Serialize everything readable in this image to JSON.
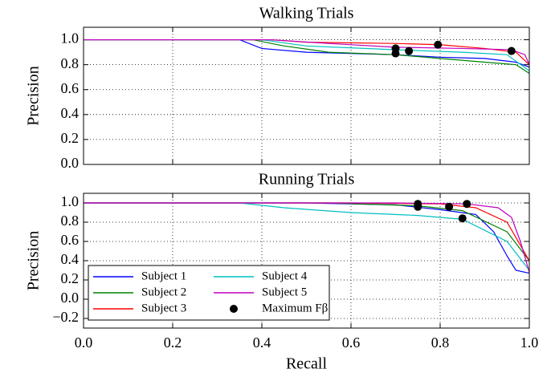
{
  "chart_data": [
    {
      "type": "line",
      "title": "Walking Trials",
      "y_label": "Precision",
      "xlim": [
        0,
        1
      ],
      "ylim": [
        0,
        1.1
      ],
      "grid": true,
      "xtick_labels": false,
      "xticks": [
        0,
        0.2,
        0.4,
        0.6,
        0.8,
        1
      ],
      "yticks": [
        {
          "value": 0,
          "label": "0.0"
        },
        {
          "value": 0.2,
          "label": "0.2"
        },
        {
          "value": 0.4,
          "label": "0.4"
        },
        {
          "value": 0.6,
          "label": "0.6"
        },
        {
          "value": 0.8,
          "label": "0.8"
        },
        {
          "value": 1,
          "label": "1.0"
        }
      ],
      "series": [
        {
          "color": "#0000ff",
          "x": [
            0,
            0.35,
            0.4,
            0.5,
            0.7,
            0.8,
            0.9,
            0.97,
            1
          ],
          "values": [
            1,
            1,
            0.93,
            0.9,
            0.88,
            0.86,
            0.85,
            0.82,
            0.78
          ]
        },
        {
          "color": "#008000",
          "x": [
            0,
            0.38,
            0.45,
            0.55,
            0.7,
            0.8,
            0.9,
            0.97,
            1
          ],
          "values": [
            1,
            1,
            0.95,
            0.9,
            0.88,
            0.85,
            0.82,
            0.8,
            0.73
          ]
        },
        {
          "color": "#ff0000",
          "x": [
            0,
            0.42,
            0.5,
            0.7,
            0.8,
            0.9,
            0.97,
            1
          ],
          "values": [
            1,
            1,
            0.98,
            0.97,
            0.96,
            0.93,
            0.9,
            0.8
          ]
        },
        {
          "color": "#00bfbf",
          "x": [
            0,
            0.4,
            0.5,
            0.7,
            0.85,
            0.95,
            1
          ],
          "values": [
            1,
            1,
            0.95,
            0.92,
            0.9,
            0.88,
            0.75
          ]
        },
        {
          "color": "#bf00bf",
          "x": [
            0,
            0.42,
            0.55,
            0.7,
            0.85,
            0.96,
            0.99,
            1
          ],
          "values": [
            1,
            1,
            0.97,
            0.94,
            0.93,
            0.92,
            0.88,
            0.8
          ]
        },
        {
          "mode": "markers",
          "color": "#000000",
          "x": [
            0.7,
            0.7,
            0.73,
            0.795,
            0.96
          ],
          "values": [
            0.93,
            0.89,
            0.91,
            0.96,
            0.91
          ]
        }
      ]
    },
    {
      "type": "line",
      "title": "Running Trials",
      "x_label": "Recall",
      "y_label": "Precision",
      "xlim": [
        0,
        1
      ],
      "ylim": [
        -0.3,
        1.1
      ],
      "grid": true,
      "xtick_labels": true,
      "legend": "lower left",
      "xticks": [
        {
          "value": 0,
          "label": "0.0"
        },
        {
          "value": 0.2,
          "label": "0.2"
        },
        {
          "value": 0.4,
          "label": "0.4"
        },
        {
          "value": 0.6,
          "label": "0.6"
        },
        {
          "value": 0.8,
          "label": "0.8"
        },
        {
          "value": 1,
          "label": "1.0"
        }
      ],
      "yticks": [
        {
          "value": -0.2,
          "label": "−0.2"
        },
        {
          "value": 0,
          "label": "0.0"
        },
        {
          "value": 0.2,
          "label": "0.2"
        },
        {
          "value": 0.4,
          "label": "0.4"
        },
        {
          "value": 0.6,
          "label": "0.6"
        },
        {
          "value": 0.8,
          "label": "0.8"
        },
        {
          "value": 1,
          "label": "1.0"
        }
      ],
      "series": [
        {
          "name": "Subject 1",
          "color": "#0000ff",
          "x": [
            0,
            0.5,
            0.7,
            0.8,
            0.88,
            0.92,
            0.95,
            0.97,
            1
          ],
          "values": [
            1,
            1,
            0.98,
            0.93,
            0.88,
            0.7,
            0.45,
            0.3,
            0.27
          ]
        },
        {
          "name": "Subject 2",
          "color": "#008000",
          "x": [
            0,
            0.55,
            0.75,
            0.85,
            0.95,
            1
          ],
          "values": [
            1,
            1,
            0.97,
            0.92,
            0.7,
            0.4
          ]
        },
        {
          "name": "Subject 3",
          "color": "#ff0000",
          "x": [
            0,
            0.6,
            0.8,
            0.88,
            0.95,
            1
          ],
          "values": [
            1,
            1,
            0.99,
            0.95,
            0.8,
            0.4
          ]
        },
        {
          "name": "Subject 4",
          "color": "#00bfbf",
          "x": [
            0,
            0.35,
            0.45,
            0.6,
            0.75,
            0.85,
            0.95,
            1
          ],
          "values": [
            1,
            1,
            0.95,
            0.9,
            0.87,
            0.83,
            0.6,
            0.3
          ]
        },
        {
          "name": "Subject 5",
          "color": "#bf00bf",
          "x": [
            0,
            0.7,
            0.86,
            0.93,
            0.96,
            0.98,
            1
          ],
          "values": [
            1,
            1,
            0.99,
            0.95,
            0.85,
            0.6,
            0.28
          ]
        },
        {
          "name": "Maximum Fβ",
          "mode": "markers",
          "color": "#000000",
          "x": [
            0.75,
            0.75,
            0.82,
            0.86,
            0.85
          ],
          "values": [
            0.99,
            0.96,
            0.96,
            0.99,
            0.84
          ]
        }
      ]
    }
  ]
}
